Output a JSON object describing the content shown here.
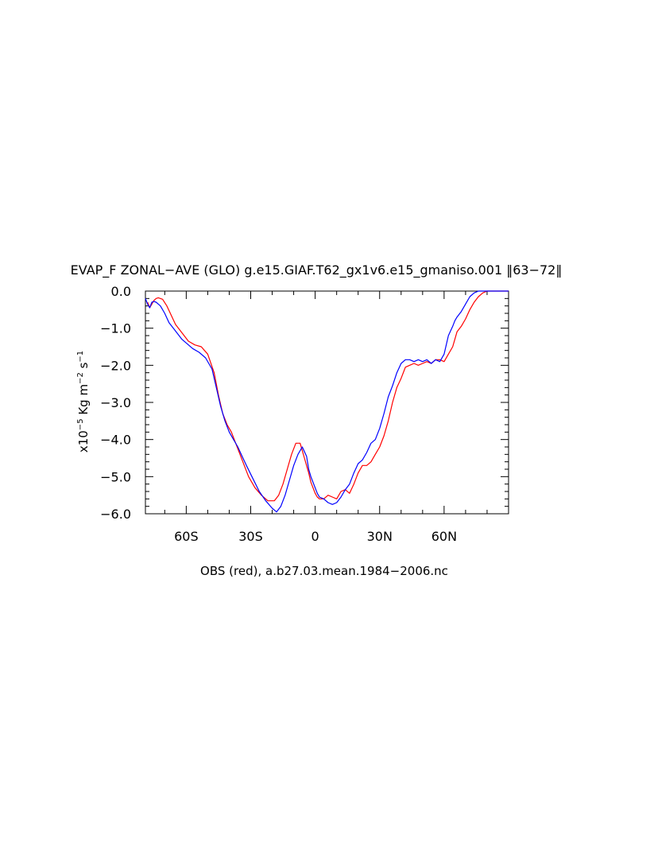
{
  "chart_data": {
    "type": "line",
    "title": "EVAP_F ZONAL−AVE (GLO) g.e15.GIAF.T62_gx1v6.e15_gmaniso.001 ‖63−72‖",
    "xlabel": "OBS (red), a.b27.03.mean.1984−2006.nc",
    "ylabel": {
      "prefix": "x10",
      "exponent": "−5",
      "unit_main": " Kg m",
      "unit_exponent": "−2",
      "unit_mid": " s",
      "unit_exponent2": "−1"
    },
    "xlim": [
      -79,
      90
    ],
    "ylim": [
      -6.0,
      0.0
    ],
    "x_ticks": [
      {
        "value": -60,
        "label": "60S"
      },
      {
        "value": -30,
        "label": "30S"
      },
      {
        "value": 0,
        "label": "0"
      },
      {
        "value": 30,
        "label": "30N"
      },
      {
        "value": 60,
        "label": "60N"
      }
    ],
    "y_ticks": [
      {
        "value": 0,
        "label": "0.0"
      },
      {
        "value": -1,
        "label": "−1.0"
      },
      {
        "value": -2,
        "label": "−2.0"
      },
      {
        "value": -3,
        "label": "−3.0"
      },
      {
        "value": -4,
        "label": "−4.0"
      },
      {
        "value": -5,
        "label": "−5.0"
      },
      {
        "value": -6,
        "label": "−6.0"
      }
    ],
    "grid": false,
    "legend": "none",
    "series": [
      {
        "color": "#ff0000",
        "x": [
          -78,
          -77,
          -76,
          -75,
          -74,
          -73,
          -71,
          -69,
          -67,
          -65,
          -63,
          -61,
          -59,
          -56,
          -53,
          -50,
          -47,
          -45,
          -43,
          -41,
          -39,
          -37,
          -35,
          -33,
          -31,
          -28,
          -25,
          -22,
          -19,
          -17,
          -15,
          -13,
          -11,
          -9,
          -7,
          -5,
          -3,
          -2,
          -1,
          0,
          1,
          2,
          4,
          6,
          8,
          10,
          12,
          14,
          16,
          18,
          20,
          22,
          24,
          26,
          28,
          30,
          32,
          34,
          36,
          38,
          40,
          42,
          44,
          46,
          48,
          50,
          52,
          54,
          56,
          58,
          60,
          62,
          64,
          65,
          66,
          68,
          70,
          72,
          74,
          76,
          78,
          80,
          82,
          84,
          86,
          88,
          90
        ],
        "values": [
          -0.3,
          -0.45,
          -0.35,
          -0.25,
          -0.2,
          -0.18,
          -0.22,
          -0.4,
          -0.65,
          -0.9,
          -1.05,
          -1.2,
          -1.35,
          -1.45,
          -1.5,
          -1.7,
          -2.2,
          -2.8,
          -3.3,
          -3.6,
          -3.8,
          -4.1,
          -4.4,
          -4.7,
          -5.0,
          -5.3,
          -5.5,
          -5.65,
          -5.65,
          -5.5,
          -5.2,
          -4.8,
          -4.4,
          -4.1,
          -4.1,
          -4.5,
          -4.9,
          -5.15,
          -5.3,
          -5.45,
          -5.55,
          -5.6,
          -5.6,
          -5.5,
          -5.55,
          -5.6,
          -5.4,
          -5.35,
          -5.45,
          -5.2,
          -4.9,
          -4.7,
          -4.7,
          -4.6,
          -4.4,
          -4.2,
          -3.9,
          -3.5,
          -3.0,
          -2.6,
          -2.35,
          -2.05,
          -2.0,
          -1.95,
          -2.0,
          -1.95,
          -1.9,
          -1.95,
          -1.85,
          -1.85,
          -1.9,
          -1.7,
          -1.5,
          -1.3,
          -1.1,
          -0.95,
          -0.75,
          -0.5,
          -0.3,
          -0.15,
          -0.05,
          0.0,
          0.0,
          0.0,
          0.0,
          0.0,
          0.0
        ]
      },
      {
        "color": "#0000ff",
        "x": [
          -79,
          -78,
          -77,
          -76,
          -75,
          -74,
          -72,
          -70,
          -68,
          -66,
          -64,
          -62,
          -60,
          -57,
          -54,
          -51,
          -48,
          -46,
          -44,
          -42,
          -40,
          -38,
          -36,
          -34,
          -32,
          -29,
          -26,
          -23,
          -20,
          -18,
          -16,
          -14,
          -12,
          -10,
          -8,
          -6,
          -4,
          -3,
          -2,
          -1,
          0,
          1,
          2,
          4,
          6,
          8,
          10,
          12,
          14,
          16,
          18,
          20,
          22,
          24,
          26,
          28,
          30,
          32,
          34,
          36,
          38,
          40,
          42,
          44,
          46,
          48,
          50,
          52,
          54,
          56,
          58,
          60,
          62,
          64,
          65,
          66,
          68,
          70,
          72,
          74,
          76,
          78,
          80,
          82,
          84,
          86,
          88,
          90
        ],
        "values": [
          -0.2,
          -0.35,
          -0.45,
          -0.3,
          -0.28,
          -0.3,
          -0.4,
          -0.6,
          -0.85,
          -1.0,
          -1.15,
          -1.3,
          -1.4,
          -1.55,
          -1.65,
          -1.8,
          -2.1,
          -2.6,
          -3.1,
          -3.5,
          -3.8,
          -4.0,
          -4.2,
          -4.45,
          -4.7,
          -5.05,
          -5.4,
          -5.65,
          -5.85,
          -5.95,
          -5.8,
          -5.5,
          -5.1,
          -4.7,
          -4.4,
          -4.2,
          -4.45,
          -4.8,
          -5.0,
          -5.15,
          -5.3,
          -5.45,
          -5.55,
          -5.6,
          -5.7,
          -5.75,
          -5.7,
          -5.55,
          -5.35,
          -5.2,
          -4.9,
          -4.65,
          -4.55,
          -4.35,
          -4.1,
          -4.0,
          -3.7,
          -3.3,
          -2.85,
          -2.55,
          -2.2,
          -1.95,
          -1.85,
          -1.85,
          -1.9,
          -1.85,
          -1.9,
          -1.85,
          -1.95,
          -1.85,
          -1.9,
          -1.7,
          -1.2,
          -0.95,
          -0.8,
          -0.7,
          -0.55,
          -0.35,
          -0.15,
          -0.05,
          0.0,
          0.0,
          0.0,
          0.0,
          0.0,
          0.0,
          0.0,
          0.0
        ]
      }
    ]
  }
}
